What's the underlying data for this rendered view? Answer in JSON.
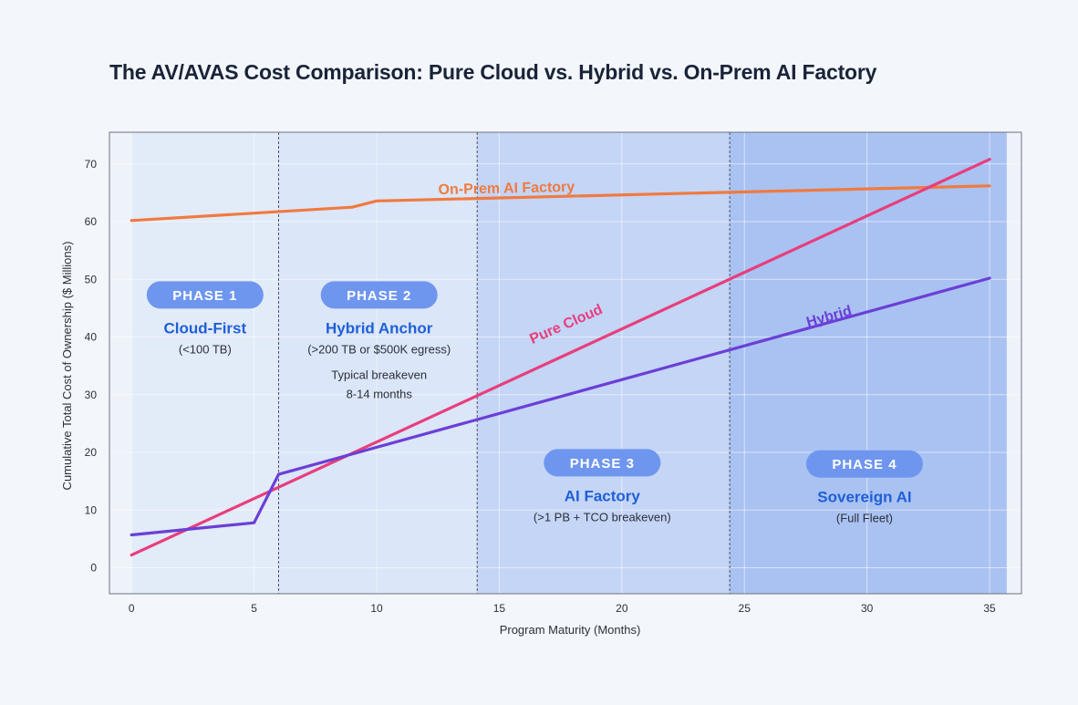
{
  "chart_data": {
    "type": "line",
    "title": "The AV/AVAS Cost Comparison: Pure Cloud vs. Hybrid vs. On-Prem AI Factory",
    "xlabel": "Program Maturity (Months)",
    "ylabel": "Cumulative Total Cost of Ownership ($ Millions)",
    "xlim": [
      -0.9,
      36.3
    ],
    "ylim": [
      -4.5,
      75.5
    ],
    "x_ticks": [
      0,
      5,
      10,
      15,
      20,
      25,
      30,
      35
    ],
    "y_ticks": [
      0,
      10,
      20,
      30,
      40,
      50,
      60,
      70
    ],
    "grid": true,
    "series": [
      {
        "name": "On-Prem AI Factory",
        "color": "#f07a3f",
        "points": [
          [
            0,
            60.2
          ],
          [
            9,
            62.5
          ],
          [
            10,
            63.6
          ],
          [
            35,
            66.2
          ]
        ],
        "label_at": [
          15.3,
          65.0
        ],
        "label_angle": -1.2
      },
      {
        "name": "Pure Cloud",
        "color": "#e83e7c",
        "points": [
          [
            0,
            2.2
          ],
          [
            35,
            70.8
          ]
        ],
        "label_at": [
          17.8,
          41.5
        ],
        "label_angle": -23.7
      },
      {
        "name": "Hybrid",
        "color": "#6b3fd6",
        "points": [
          [
            0,
            5.7
          ],
          [
            5,
            7.8
          ],
          [
            6,
            16.2
          ],
          [
            35,
            50.2
          ]
        ],
        "label_at": [
          28.5,
          42.8
        ],
        "label_angle": -15.5
      }
    ],
    "phases": [
      {
        "pill": "PHASE 1",
        "name": "Cloud-First",
        "sub": [
          "(<100 TB)"
        ],
        "x_range": [
          0,
          6
        ],
        "fill": "#e2ebf8",
        "anchor": [
          3.0,
          47.3
        ]
      },
      {
        "pill": "PHASE 2",
        "name": "Hybrid Anchor",
        "sub": [
          "(>200 TB or $500K egress)",
          "Typical breakeven",
          "8-14 months"
        ],
        "x_range": [
          6,
          14.1
        ],
        "fill": "#dbe6f8",
        "anchor": [
          10.1,
          47.3
        ]
      },
      {
        "pill": "PHASE 3",
        "name": "AI Factory",
        "sub": [
          "(>1 PB + TCO breakeven)"
        ],
        "x_range": [
          14.1,
          24.4
        ],
        "fill": "#c4d5f6",
        "anchor": [
          19.2,
          18.2
        ]
      },
      {
        "pill": "PHASE 4",
        "name": "Sovereign AI",
        "sub": [
          "(Full Fleet)"
        ],
        "x_range": [
          24.4,
          35.7
        ],
        "fill": "#a9c2f2",
        "anchor": [
          29.9,
          18.0
        ]
      }
    ]
  }
}
